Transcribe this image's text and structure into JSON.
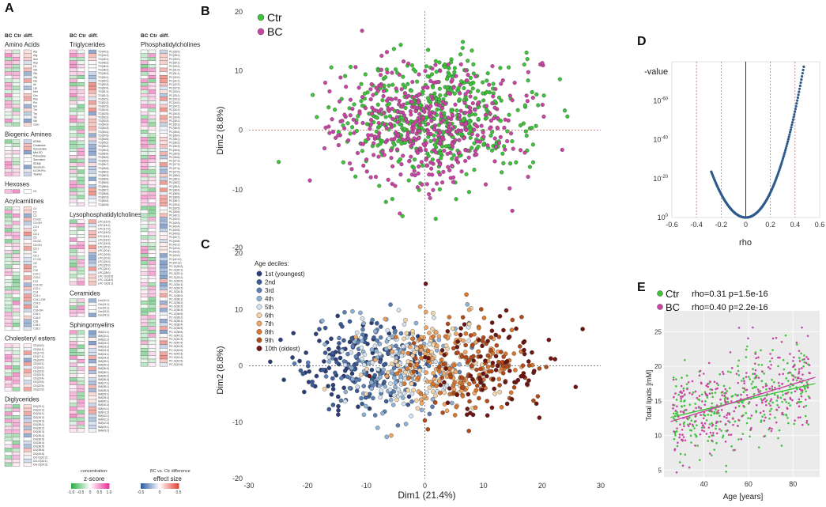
{
  "panels": {
    "A": "A",
    "B": "B",
    "C": "C",
    "D": "D",
    "E": "E"
  },
  "heatmap": {
    "col_headers": [
      "BC",
      "Ctr",
      "diff."
    ],
    "groups": [
      {
        "title": "Amino Acids",
        "col": 0,
        "labels": [
          "Ala",
          "Arg",
          "Asn",
          "Asp",
          "Cit",
          "Gln",
          "Glu",
          "Gly",
          "His",
          "Ile",
          "Lys",
          "Met",
          "Orn",
          "Phe",
          "Pro",
          "Ser",
          "Thr",
          "Trp",
          "Tyr",
          "Val",
          "xLeu"
        ]
      },
      {
        "title": "Biogenic Amines",
        "col": 0,
        "labels": [
          "ADMA",
          "Creatinine",
          "Kynurenine",
          "Met-SO",
          "Putrescine",
          "Sarcosine",
          "SDMA",
          "Serotonin",
          "t4-OH-Pro",
          "Taurine"
        ]
      },
      {
        "title": "Hexoses",
        "col": 0,
        "labels": [
          "H1"
        ]
      },
      {
        "title": "Acylcarnitines",
        "col": 0,
        "labels": [
          "C0",
          "C2",
          "C3",
          "C3-DC",
          "C3-OH",
          "C3:1",
          "C4",
          "C4:1",
          "C5",
          "C5-DC",
          "C5-OH",
          "C5:1",
          "C6",
          "C6:1",
          "C7-DC",
          "C8",
          "C9",
          "C10",
          "C10:1",
          "C10:2",
          "C12",
          "C12-DC",
          "C12:1",
          "C14",
          "C14:1",
          "C14:1-OH",
          "C14:2",
          "C16",
          "C16-OH",
          "C16:1",
          "C16:2",
          "C18",
          "C18:1",
          "C18:2"
        ]
      },
      {
        "title": "Cholesteryl esters",
        "col": 0,
        "labels": [
          "CE(16:0)",
          "CE(16:1)",
          "CE(17:0)",
          "CE(17:1)",
          "CE(18:0)",
          "CE(18:1)",
          "CE(18:2)",
          "CE(18:3)",
          "CE(20:3)",
          "CE(20:4)",
          "CE(20:5)",
          "CE(22:5)",
          "CE(22:6)"
        ]
      },
      {
        "title": "Diglycerides",
        "col": 0,
        "labels": [
          "DG(32:1)",
          "DG(32:2)",
          "DG(34:1)",
          "DG(34:2)",
          "DG(34:3)",
          "DG(36:1)",
          "DG(36:2)",
          "DG(36:3)",
          "DG(36:4)",
          "DG(36:5)",
          "DG(38:4)",
          "DG(38:5)",
          "DG(38:6)",
          "DG(40:6)",
          "DG-O(32:2)",
          "DG-O(34:1)",
          "DG-O(34:3)"
        ]
      },
      {
        "title": "Triglycerides",
        "col": 1,
        "labels": [
          "TG(44:1)",
          "TG(44:2)",
          "TG(46:1)",
          "TG(46:2)",
          "TG(48:1)",
          "TG(48:2)",
          "TG(48:3)",
          "TG(50:1)",
          "TG(50:2)",
          "TG(50:3)",
          "TG(50:4)",
          "TG(51:1)",
          "TG(51:2)",
          "TG(52:1)",
          "TG(52:2)",
          "TG(52:3)",
          "TG(52:4)",
          "TG(52:5)",
          "TG(53:2)",
          "TG(53:3)",
          "TG(54:2)",
          "TG(54:3)",
          "TG(54:4)",
          "TG(54:5)",
          "TG(54:6)",
          "TG(55:2)",
          "TG(56:2)",
          "TG(56:3)",
          "TG(56:4)",
          "TG(56:5)",
          "TG(56:6)",
          "TG(56:7)",
          "TG(56:8)",
          "TG(58:2)",
          "TG(58:3)",
          "TG(58:4)",
          "TG(58:5)",
          "TG(58:6)",
          "TG(58:7)",
          "TG(58:8)",
          "TG(60:3)",
          "TG(60:4)",
          "TG(60:5)"
        ]
      },
      {
        "title": "Lysophosphatidylcholines",
        "col": 1,
        "labels": [
          "LPC(16:0)",
          "LPC(16:1)",
          "LPC(17:0)",
          "LPC(18:0)",
          "LPC(18:1)",
          "LPC(18:2)",
          "LPC(18:3)",
          "LPC(20:3)",
          "LPC(20:4)",
          "LPC(20:5)",
          "LPC(22:6)",
          "LPC(24:0)",
          "LPC(26:0)",
          "LPC(26:1)",
          "LPC(28:0)",
          "LPC-O(16:0)",
          "LPC-O(18:0)",
          "LPC-O(18:1)"
        ]
      },
      {
        "title": "Ceramides",
        "col": 1,
        "labels": [
          "Cer(40:1)",
          "Cer(41:1)",
          "Cer(42:1)",
          "Cer(42:2)",
          "Cer(43:1)"
        ]
      },
      {
        "title": "Sphingomyelins",
        "col": 1,
        "labels": [
          "SM(31:1)",
          "SM(32:1)",
          "SM(32:2)",
          "SM(33:1)",
          "SM(33:2)",
          "SM(34:0)",
          "SM(34:1)",
          "SM(34:2)",
          "SM(35:1)",
          "SM(35:2)",
          "SM(36:0)",
          "SM(36:1)",
          "SM(36:2)",
          "SM(36:3)",
          "SM(37:1)",
          "SM(38:1)",
          "SM(38:2)",
          "SM(39:1)",
          "SM(39:2)",
          "SM(40:1)",
          "SM(40:2)",
          "SM(41:1)",
          "SM(41:2)",
          "SM(42:1)",
          "SM(42:2)",
          "SM(42:3)",
          "SM(43:1)",
          "SM(43:2)"
        ]
      },
      {
        "title": "Phosphatidylcholines",
        "col": 2,
        "labels": [
          "PC(28:0)",
          "PC(28:1)",
          "PC(30:0)",
          "PC(30:1)",
          "PC(30:2)",
          "PC(31:0)",
          "PC(31:1)",
          "PC(32:0)",
          "PC(32:1)",
          "PC(32:2)",
          "PC(32:3)",
          "PC(33:0)",
          "PC(33:1)",
          "PC(33:2)",
          "PC(34:0)",
          "PC(34:1)",
          "PC(34:2)",
          "PC(34:3)",
          "PC(34:4)",
          "PC(35:1)",
          "PC(35:2)",
          "PC(35:3)",
          "PC(35:4)",
          "PC(36:0)",
          "PC(36:1)",
          "PC(36:2)",
          "PC(36:3)",
          "PC(36:4)",
          "PC(36:5)",
          "PC(36:6)",
          "PC(37:2)",
          "PC(37:3)",
          "PC(37:4)",
          "PC(37:5)",
          "PC(38:0)",
          "PC(38:1)",
          "PC(38:2)",
          "PC(38:3)",
          "PC(38:4)",
          "PC(38:5)",
          "PC(38:6)",
          "PC(38:7)",
          "PC(39:4)",
          "PC(39:5)",
          "PC(39:6)",
          "PC(40:1)",
          "PC(40:2)",
          "PC(40:3)",
          "PC(40:4)",
          "PC(40:5)",
          "PC(40:6)",
          "PC(40:7)",
          "PC(40:8)",
          "PC(42:2)",
          "PC(42:4)",
          "PC(42:5)",
          "PC(42:6)",
          "PC(42:10)",
          "PC(44:12)",
          "PC-O(30:0)",
          "PC-O(30:1)",
          "PC-O(32:1)",
          "PC-O(32:2)",
          "PC-O(34:0)",
          "PC-O(34:1)",
          "PC-O(34:2)",
          "PC-O(34:3)",
          "PC-O(36:0)",
          "PC-O(36:1)",
          "PC-O(36:2)",
          "PC-O(36:3)",
          "PC-O(36:4)",
          "PC-O(36:5)",
          "PC-O(38:2)",
          "PC-O(38:3)",
          "PC-O(38:4)",
          "PC-O(38:5)",
          "PC-O(38:6)",
          "PC-O(40:2)",
          "PC-O(40:3)",
          "PC-O(40:4)",
          "PC-O(40:5)",
          "PC-O(40:6)",
          "PC-O(42:3)",
          "PC-O(42:4)",
          "PC-O(42:5)",
          "PC-O(42:6)"
        ]
      }
    ],
    "legend_conc": {
      "title": "concentration:",
      "subtitle": "z-score",
      "ticks": [
        "-1.0",
        "-0.5",
        "0",
        "0.5",
        "1.0"
      ]
    },
    "legend_eff": {
      "title": "BC vs. Ctr difference",
      "subtitle": "effect size",
      "ticks": [
        "-0.5",
        "0",
        "0.5"
      ]
    },
    "colors": {
      "z_low": "#2db34a",
      "z_high": "#e8389a",
      "e_low": "#3161a8",
      "e_high": "#e24b3c"
    }
  },
  "chart_data": [
    {
      "panel": "B",
      "type": "scatter",
      "xlabel": "",
      "ylabel": "Dim2 (8.8%)",
      "xlim": [
        -30,
        30
      ],
      "ylim": [
        -20,
        20
      ],
      "xticks": [
        "-30",
        "-20",
        "-10",
        "0",
        "10",
        "20",
        "30"
      ],
      "yticks": [
        "-20",
        "-10",
        "0",
        "10",
        "20"
      ],
      "series": [
        {
          "name": "Ctr",
          "color": "#3fc23b",
          "n": 520,
          "center": [
            2,
            2
          ],
          "spread": [
            8,
            5
          ]
        },
        {
          "name": "BC",
          "color": "#c945a3",
          "n": 420,
          "center": [
            0,
            1
          ],
          "spread": [
            8,
            5
          ]
        }
      ]
    },
    {
      "panel": "C",
      "type": "scatter",
      "xlabel": "Dim1 (21.4%)",
      "ylabel": "Dim2 (8.8%)",
      "xlim": [
        -30,
        30
      ],
      "ylim": [
        -20,
        20
      ],
      "xticks": [
        "-30",
        "-20",
        "-10",
        "0",
        "10",
        "20",
        "30"
      ],
      "yticks": [
        "-20",
        "-10",
        "0",
        "10",
        "20"
      ],
      "legend_title": "Age deciles:",
      "series": [
        {
          "name": "1st (youngest)",
          "color": "#2b3f7a",
          "cx": -12
        },
        {
          "name": "2nd",
          "color": "#3c5c97",
          "cx": -10
        },
        {
          "name": "3rd",
          "color": "#5b7fb5",
          "cx": -7
        },
        {
          "name": "4th",
          "color": "#8fb1d6",
          "cx": -5
        },
        {
          "name": "5th",
          "color": "#d4e3f0",
          "cx": -3
        },
        {
          "name": "6th",
          "color": "#f3d4a8",
          "cx": 0
        },
        {
          "name": "7th",
          "color": "#eea666",
          "cx": 3
        },
        {
          "name": "8th",
          "color": "#d9762f",
          "cx": 6
        },
        {
          "name": "9th",
          "color": "#b24a1b",
          "cx": 9
        },
        {
          "name": "10th (oldest)",
          "color": "#6e1511",
          "cx": 12
        }
      ]
    },
    {
      "panel": "D",
      "type": "scatter",
      "title": "p-value",
      "xlabel": "rho",
      "ylabel": "",
      "xlim": [
        -0.6,
        0.6
      ],
      "ylim": [
        0,
        80
      ],
      "y_scale": "log10",
      "xticks": [
        "-0.6",
        "-0.4",
        "-0.2",
        "0",
        "0.2",
        "0.4",
        "0.6"
      ],
      "yticks": [
        {
          "base": "10",
          "exp": "0",
          "v": 0
        },
        {
          "base": "10",
          "exp": "-20",
          "v": 20
        },
        {
          "base": "10",
          "exp": "-40",
          "v": 40
        },
        {
          "base": "10",
          "exp": "-60",
          "v": 60
        }
      ],
      "color": "#2d5a8a",
      "rho_range": [
        -0.28,
        0.49
      ],
      "vlines": [
        {
          "x": -0.4,
          "color": "#e06060"
        },
        {
          "x": -0.2,
          "color": "#888888"
        },
        {
          "x": 0,
          "color": "#333333"
        },
        {
          "x": 0.2,
          "color": "#888888"
        },
        {
          "x": 0.4,
          "color": "#e06060"
        }
      ]
    },
    {
      "panel": "E",
      "type": "scatter",
      "xlabel": "Age [years]",
      "ylabel": "Total lipids [mM]",
      "xlim": [
        22,
        92
      ],
      "ylim": [
        4,
        28
      ],
      "xticks": [
        {
          "v": 40,
          "t": "40"
        },
        {
          "v": 60,
          "t": "60"
        },
        {
          "v": 80,
          "t": "80"
        }
      ],
      "yticks": [
        {
          "v": 5,
          "t": "5"
        },
        {
          "v": 10,
          "t": "10"
        },
        {
          "v": 15,
          "t": "15"
        },
        {
          "v": 20,
          "t": "20"
        },
        {
          "v": 25,
          "t": "25"
        }
      ],
      "series": [
        {
          "name": "Ctr",
          "color": "#3fc23b",
          "stats": "rho=0.31 p=1.5e-16",
          "fit": [
            [
              25,
              12.6
            ],
            [
              90,
              17.5
            ]
          ]
        },
        {
          "name": "BC",
          "color": "#c945a3",
          "stats": "rho=0.40 p=2.2e-16",
          "fit": [
            [
              25,
              12.0
            ],
            [
              90,
              18.4
            ]
          ]
        }
      ]
    }
  ]
}
